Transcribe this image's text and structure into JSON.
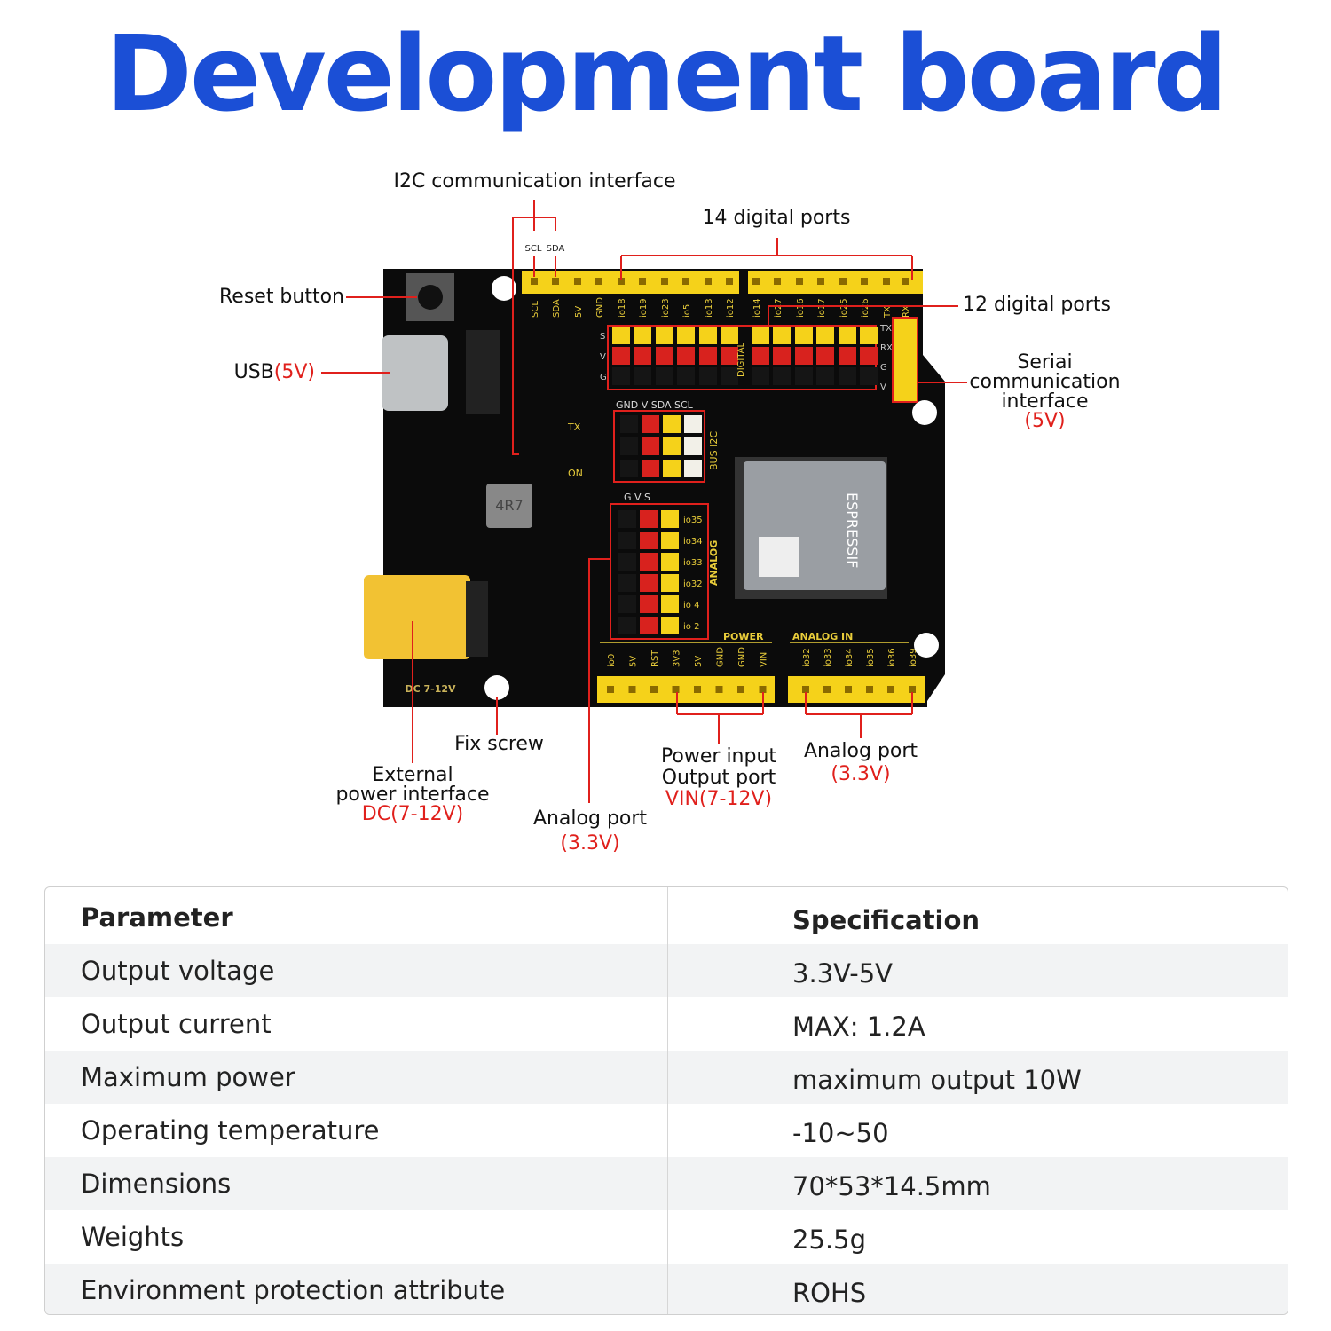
{
  "title": "Development board",
  "colors": {
    "title": "#1b4fd6",
    "annotation_line": "#e0201c",
    "board": "#0b0b0b",
    "header_yellow": "#f5d21a",
    "pin_red": "#d8221e"
  },
  "annotations": {
    "i2c": "I2C communication interface",
    "scl": "SCL",
    "sda": "SDA",
    "digital14": "14 digital ports",
    "digital12": "12 digital ports",
    "reset": "Reset button",
    "usb": "USB",
    "usb_v": "(5V)",
    "serial_1": "Seriai",
    "serial_2": "communication",
    "serial_3": "interface",
    "serial_v": "(5V)",
    "fix_screw": "Fix screw",
    "ext_1": "External",
    "ext_2": "power interface",
    "ext_v": "DC(7-12V)",
    "analog_mid": "Analog port",
    "analog_mid_v": "(3.3V)",
    "power_1": "Power input",
    "power_2": "Output port",
    "power_v": "VIN(7-12V)",
    "analog_right": "Analog port",
    "analog_right_v": "(3.3V)"
  },
  "board": {
    "top_labels": [
      "SCL",
      "SDA",
      "5V",
      "GND",
      "io18",
      "io19",
      "io23",
      "io5",
      "io13",
      "io12",
      "io14",
      "io27",
      "io16",
      "io17",
      "io25",
      "io26",
      "TX",
      "RX"
    ],
    "bottom_power_labels": [
      "io0",
      "5V",
      "RST",
      "3V3",
      "5V",
      "GND",
      "GND",
      "VIN"
    ],
    "bottom_analog_labels": [
      "io32",
      "io33",
      "io34",
      "io35",
      "io36",
      "io39"
    ],
    "analog_pin_labels": [
      "io35",
      "io34",
      "io33",
      "io32",
      "io 4",
      "io 2"
    ],
    "i2c_header": "GND  V  SDA SCL",
    "bus_i2c": "BUS I2C",
    "gvs": "G   V   S",
    "analog": "ANALOG",
    "power": "POWER",
    "analog_in": "ANALOG IN",
    "digital": "DIGITAL",
    "dc": "DC 7-12V",
    "inductor": "4R7",
    "tx": "TX",
    "on": "ON",
    "module": "ESPRESSIF",
    "svg": [
      "S",
      "V",
      "G"
    ],
    "serial_pins": [
      "TX",
      "RX",
      "G",
      "V"
    ]
  },
  "table": {
    "headers": [
      "Parameter",
      "Specification"
    ],
    "rows": [
      [
        "Output voltage",
        "3.3V-5V"
      ],
      [
        "Output current",
        "MAX: 1.2A"
      ],
      [
        "Maximum power",
        "maximum output 10W"
      ],
      [
        "Operating temperature",
        "-10~50"
      ],
      [
        "Dimensions",
        "70*53*14.5mm"
      ],
      [
        "Weights",
        "25.5g"
      ],
      [
        "Environment protection attribute",
        "ROHS"
      ]
    ]
  }
}
